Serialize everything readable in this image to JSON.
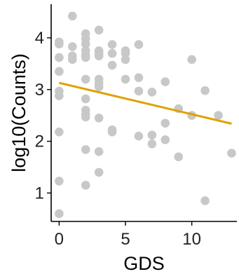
{
  "chart_data": {
    "type": "scatter",
    "xlabel": "GDS",
    "ylabel": "log10(Counts)",
    "xlim": [
      -0.6,
      13.4
    ],
    "ylim": [
      0.45,
      4.65
    ],
    "xticks": [
      0,
      5,
      10
    ],
    "yticks": [
      1,
      2,
      3,
      4
    ],
    "grid": false,
    "legend": "none",
    "point_color": "#c8c8c8",
    "trend_color": "#e0a000",
    "trend_line": {
      "x": [
        0,
        13
      ],
      "y": [
        3.13,
        2.34
      ]
    },
    "points": [
      {
        "x": 0,
        "y": 3.92
      },
      {
        "x": 0,
        "y": 3.88
      },
      {
        "x": 0,
        "y": 3.62
      },
      {
        "x": 0,
        "y": 3.35
      },
      {
        "x": 0,
        "y": 2.97
      },
      {
        "x": 0,
        "y": 2.88
      },
      {
        "x": 0,
        "y": 2.18
      },
      {
        "x": 0,
        "y": 1.23
      },
      {
        "x": 0,
        "y": 0.6
      },
      {
        "x": 1,
        "y": 4.42
      },
      {
        "x": 1,
        "y": 3.83
      },
      {
        "x": 1,
        "y": 3.65
      },
      {
        "x": 1,
        "y": 3.58
      },
      {
        "x": 2,
        "y": 4.08
      },
      {
        "x": 2,
        "y": 3.98
      },
      {
        "x": 2,
        "y": 3.88
      },
      {
        "x": 2,
        "y": 3.75
      },
      {
        "x": 2,
        "y": 3.67
      },
      {
        "x": 2,
        "y": 3.62
      },
      {
        "x": 2,
        "y": 3.2
      },
      {
        "x": 2,
        "y": 2.82
      },
      {
        "x": 2,
        "y": 2.6
      },
      {
        "x": 2,
        "y": 2.52
      },
      {
        "x": 2,
        "y": 2.47
      },
      {
        "x": 2,
        "y": 1.84
      },
      {
        "x": 2,
        "y": 1.15
      },
      {
        "x": 3,
        "y": 4.15
      },
      {
        "x": 3,
        "y": 3.75
      },
      {
        "x": 3,
        "y": 3.7
      },
      {
        "x": 3,
        "y": 3.65
      },
      {
        "x": 3,
        "y": 3.2
      },
      {
        "x": 3,
        "y": 3.12
      },
      {
        "x": 3,
        "y": 3.05
      },
      {
        "x": 3,
        "y": 2.45
      },
      {
        "x": 3,
        "y": 1.8
      },
      {
        "x": 3,
        "y": 1.4
      },
      {
        "x": 4,
        "y": 3.87
      },
      {
        "x": 4,
        "y": 3.7
      },
      {
        "x": 4,
        "y": 3.47
      },
      {
        "x": 4,
        "y": 2.22
      },
      {
        "x": 4,
        "y": 2.18
      },
      {
        "x": 5,
        "y": 3.75
      },
      {
        "x": 5,
        "y": 3.7
      },
      {
        "x": 5,
        "y": 3.58
      },
      {
        "x": 5,
        "y": 3.2
      },
      {
        "x": 6,
        "y": 3.87
      },
      {
        "x": 6,
        "y": 3.23
      },
      {
        "x": 6,
        "y": 2.97
      },
      {
        "x": 6,
        "y": 2.1
      },
      {
        "x": 7,
        "y": 2.95
      },
      {
        "x": 7,
        "y": 2.12
      },
      {
        "x": 7,
        "y": 1.95
      },
      {
        "x": 8,
        "y": 3.15
      },
      {
        "x": 8,
        "y": 2.35
      },
      {
        "x": 8,
        "y": 2.03
      },
      {
        "x": 9,
        "y": 2.63
      },
      {
        "x": 9,
        "y": 1.7
      },
      {
        "x": 10,
        "y": 3.58
      },
      {
        "x": 10,
        "y": 2.5
      },
      {
        "x": 11,
        "y": 2.98
      },
      {
        "x": 11,
        "y": 0.85
      },
      {
        "x": 12,
        "y": 2.5
      },
      {
        "x": 13,
        "y": 1.77
      }
    ]
  }
}
